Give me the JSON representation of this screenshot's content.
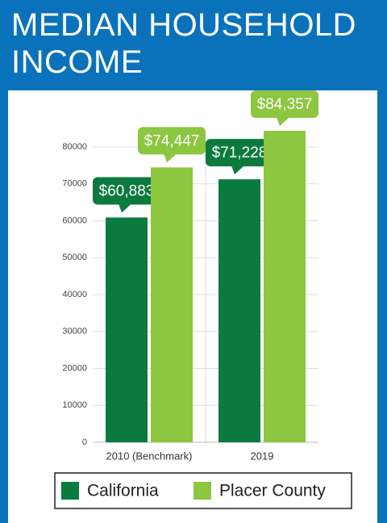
{
  "chart_data": {
    "type": "bar",
    "title": "MEDIAN HOUSEHOLD INCOME",
    "categories": [
      "2010 (Benchmark)",
      "2019"
    ],
    "series": [
      {
        "name": "California",
        "color": "#0b7a3e",
        "values": [
          60883,
          71228
        ],
        "value_labels": [
          "$60,883",
          "$71,228"
        ]
      },
      {
        "name": "Placer County",
        "color": "#8dc63f",
        "values": [
          74447,
          84357
        ],
        "value_labels": [
          "$74,447",
          "$84,357"
        ]
      }
    ],
    "ylim": [
      0,
      80000
    ],
    "yticks": [
      0,
      10000,
      20000,
      30000,
      40000,
      50000,
      60000,
      70000,
      80000
    ],
    "grid": true,
    "legend": "bottom"
  }
}
